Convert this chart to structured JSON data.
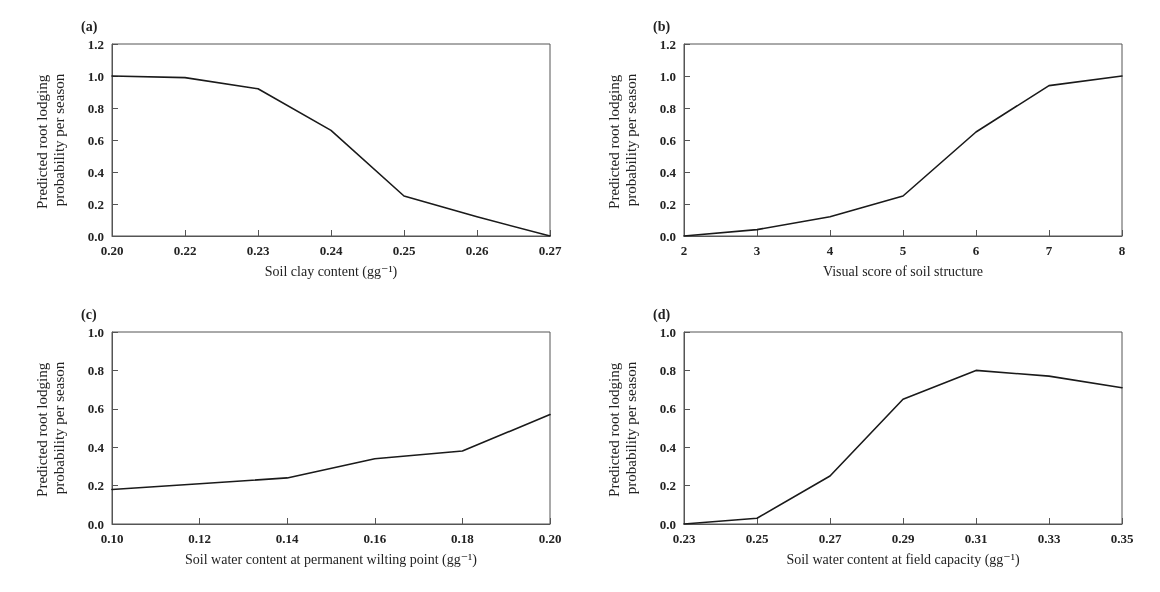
{
  "chart_data": [
    {
      "type": "line",
      "title": "(a)",
      "xlabel": "Soil clay content (gg⁻¹)",
      "ylabel": "Predicted root lodging probability per season",
      "categories": [
        "0.20",
        "0.22",
        "0.23",
        "0.24",
        "0.25",
        "0.26",
        "0.27"
      ],
      "series": [
        {
          "color": "#1a1a1a",
          "values": [
            1.0,
            0.99,
            0.92,
            0.66,
            0.25,
            0.12,
            0.0
          ]
        }
      ],
      "ylim": [
        0,
        1.2
      ],
      "yticks": [
        {
          "value": 0,
          "label": "0.0"
        },
        {
          "value": 0.2,
          "label": "0.2"
        },
        {
          "value": 0.4,
          "label": "0.4"
        },
        {
          "value": 0.6,
          "label": "0.6"
        },
        {
          "value": 0.8,
          "label": "0.8"
        },
        {
          "value": 1.0,
          "label": "1.0"
        },
        {
          "value": 1.2,
          "label": "1.2"
        }
      ],
      "grid": false,
      "marker": "none",
      "line_style": "solid"
    },
    {
      "type": "line",
      "title": "(b)",
      "xlabel": "Visual score of soil structure",
      "ylabel": "Predicted root lodging probability per season",
      "x": [
        2,
        3,
        4,
        5,
        6,
        7,
        8
      ],
      "series": [
        {
          "color": "#1a1a1a",
          "values": [
            0.0,
            0.04,
            0.12,
            0.25,
            0.65,
            0.94,
            1.0
          ]
        }
      ],
      "xlim": [
        2,
        8
      ],
      "xticks": [
        2,
        3,
        4,
        5,
        6,
        7,
        8
      ],
      "ylim": [
        0,
        1.2
      ],
      "yticks": [
        {
          "value": 0,
          "label": "0.0"
        },
        {
          "value": 0.2,
          "label": "0.2"
        },
        {
          "value": 0.4,
          "label": "0.4"
        },
        {
          "value": 0.6,
          "label": "0.6"
        },
        {
          "value": 0.8,
          "label": "0.8"
        },
        {
          "value": 1.0,
          "label": "1.0"
        },
        {
          "value": 1.2,
          "label": "1.2"
        }
      ],
      "grid": false,
      "marker": "none",
      "line_style": "solid"
    },
    {
      "type": "line",
      "title": "(c)",
      "xlabel": "Soil water content at permanent wilting point (gg⁻¹)",
      "ylabel": "Predicted root lodging probability per season",
      "x": [
        0.1,
        0.12,
        0.14,
        0.16,
        0.18,
        0.2
      ],
      "series": [
        {
          "color": "#1a1a1a",
          "values": [
            0.18,
            0.21,
            0.24,
            0.34,
            0.38,
            0.57
          ]
        }
      ],
      "xlim": [
        0.1,
        0.2
      ],
      "xticks": [
        {
          "value": 0.1,
          "label": "0.10"
        },
        {
          "value": 0.12,
          "label": "0.12"
        },
        {
          "value": 0.14,
          "label": "0.14"
        },
        {
          "value": 0.16,
          "label": "0.16"
        },
        {
          "value": 0.18,
          "label": "0.18"
        },
        {
          "value": 0.2,
          "label": "0.20"
        }
      ],
      "ylim": [
        0,
        1.0
      ],
      "yticks": [
        {
          "value": 0,
          "label": "0.0"
        },
        {
          "value": 0.2,
          "label": "0.2"
        },
        {
          "value": 0.4,
          "label": "0.4"
        },
        {
          "value": 0.6,
          "label": "0.6"
        },
        {
          "value": 0.8,
          "label": "0.8"
        },
        {
          "value": 1.0,
          "label": "1.0"
        }
      ],
      "grid": false,
      "marker": "none",
      "line_style": "solid"
    },
    {
      "type": "line",
      "title": "(d)",
      "xlabel": "Soil water content at field capacity (gg⁻¹)",
      "ylabel": "Predicted root lodging probability per season",
      "x": [
        0.23,
        0.25,
        0.27,
        0.29,
        0.31,
        0.33,
        0.35
      ],
      "series": [
        {
          "color": "#1a1a1a",
          "values": [
            0.0,
            0.03,
            0.25,
            0.65,
            0.8,
            0.77,
            0.71
          ]
        }
      ],
      "xlim": [
        0.23,
        0.35
      ],
      "xticks": [
        {
          "value": 0.23,
          "label": "0.23"
        },
        {
          "value": 0.25,
          "label": "0.25"
        },
        {
          "value": 0.27,
          "label": "0.27"
        },
        {
          "value": 0.29,
          "label": "0.29"
        },
        {
          "value": 0.31,
          "label": "0.31"
        },
        {
          "value": 0.33,
          "label": "0.33"
        },
        {
          "value": 0.35,
          "label": "0.35"
        }
      ],
      "ylim": [
        0,
        1.0
      ],
      "yticks": [
        {
          "value": 0,
          "label": "0.0"
        },
        {
          "value": 0.2,
          "label": "0.2"
        },
        {
          "value": 0.4,
          "label": "0.4"
        },
        {
          "value": 0.6,
          "label": "0.6"
        },
        {
          "value": 0.8,
          "label": "0.8"
        },
        {
          "value": 1.0,
          "label": "1.0"
        }
      ],
      "grid": false,
      "marker": "none",
      "line_style": "solid"
    }
  ]
}
